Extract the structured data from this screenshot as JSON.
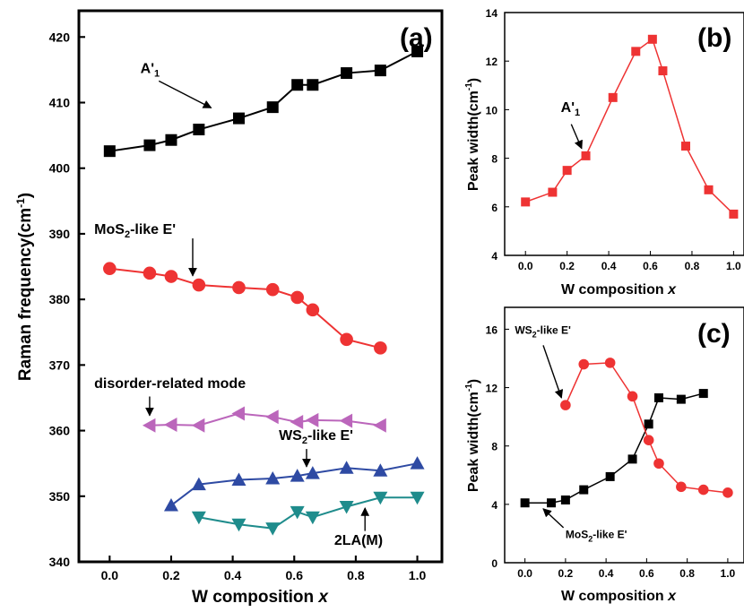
{
  "chart_data": [
    {
      "id": "a",
      "panel_label": "(a)",
      "type": "line",
      "xlabel": "W composition",
      "xlabel_var": "x",
      "ylabel": "Raman frequency(cm",
      "ylabel_sup": "-1",
      "ylabel_end": ")",
      "xlim": [
        -0.1,
        1.08
      ],
      "ylim": [
        340,
        424
      ],
      "xticks": [
        0.0,
        0.2,
        0.4,
        0.6,
        0.8,
        1.0
      ],
      "xtick_labels": [
        "0.0",
        "0.2",
        "0.4",
        "0.6",
        "0.8",
        "1.0"
      ],
      "yticks": [
        340,
        350,
        360,
        370,
        380,
        390,
        400,
        410,
        420
      ],
      "ytick_labels": [
        "340",
        "350",
        "360",
        "370",
        "380",
        "390",
        "400",
        "410",
        "420"
      ],
      "series": [
        {
          "marker": "square",
          "color": "#000000",
          "x": [
            0.0,
            0.13,
            0.2,
            0.29,
            0.42,
            0.53,
            0.61,
            0.66,
            0.77,
            0.88,
            1.0
          ],
          "y": [
            402.6,
            403.5,
            404.3,
            405.9,
            407.6,
            409.3,
            412.7,
            412.7,
            414.5,
            414.9,
            417.8
          ]
        },
        {
          "marker": "circle",
          "color": "#ee3333",
          "x": [
            0.0,
            0.13,
            0.2,
            0.29,
            0.42,
            0.53,
            0.61,
            0.66,
            0.77,
            0.88
          ],
          "y": [
            384.7,
            384.0,
            383.5,
            382.2,
            381.8,
            381.5,
            380.3,
            378.4,
            373.9,
            372.6
          ]
        },
        {
          "marker": "triangle-left",
          "color": "#bb66bb",
          "x": [
            0.13,
            0.2,
            0.29,
            0.42,
            0.53,
            0.61,
            0.66,
            0.77,
            0.88
          ],
          "y": [
            360.8,
            360.9,
            360.8,
            362.6,
            362.1,
            361.3,
            361.6,
            361.5,
            360.8
          ]
        },
        {
          "marker": "triangle-up",
          "color": "#2e4aa3",
          "x": [
            0.2,
            0.29,
            0.42,
            0.53,
            0.61,
            0.66,
            0.77,
            0.88,
            1.0
          ],
          "y": [
            348.6,
            351.8,
            352.5,
            352.7,
            353.1,
            353.5,
            354.3,
            353.9,
            355.0
          ]
        },
        {
          "marker": "triangle-down",
          "color": "#1f8c8c",
          "x": [
            0.29,
            0.42,
            0.53,
            0.61,
            0.66,
            0.77,
            0.88,
            1.0
          ],
          "y": [
            346.8,
            345.7,
            345.1,
            347.6,
            346.8,
            348.4,
            349.8,
            349.8
          ]
        }
      ],
      "annotations": [
        {
          "text": "A'",
          "sub": "1",
          "x": 0.1,
          "y": 414.5,
          "arrow_to": [
            0.33,
            409.2
          ],
          "arrow_from": [
            0.16,
            413.3
          ]
        },
        {
          "text": "MoS",
          "sub": "2",
          "text_end": "-like E'",
          "x": -0.05,
          "y": 390,
          "arrow_to": [
            0.27,
            383.6
          ],
          "arrow_from": [
            0.27,
            389.3
          ]
        },
        {
          "text": "disorder-related mode",
          "x": -0.05,
          "y": 366.5,
          "arrow_to": [
            0.13,
            362.3
          ],
          "arrow_from": [
            0.13,
            365.2
          ]
        },
        {
          "text": "WS",
          "sub": "2",
          "text_end": "-like E'",
          "x": 0.55,
          "y": 358.6,
          "arrow_to": [
            0.64,
            354.5
          ],
          "arrow_from": [
            0.64,
            357.2
          ]
        },
        {
          "text": "2LA(M)",
          "x": 0.73,
          "y": 342.6,
          "arrow_to": [
            0.83,
            348.2
          ],
          "arrow_from": [
            0.83,
            344.7
          ]
        }
      ]
    },
    {
      "id": "b",
      "panel_label": "(b)",
      "type": "line",
      "xlabel": "W composition",
      "xlabel_var": "x",
      "ylabel": "Peak width(cm",
      "ylabel_sup": "-1",
      "ylabel_end": ")",
      "xlim": [
        -0.1,
        1.05
      ],
      "ylim": [
        4,
        14
      ],
      "xticks": [
        0.0,
        0.2,
        0.4,
        0.6,
        0.8,
        1.0
      ],
      "xtick_labels": [
        "0.0",
        "0.2",
        "0.4",
        "0.6",
        "0.8",
        "1.0"
      ],
      "yticks": [
        4,
        6,
        8,
        10,
        12,
        14
      ],
      "ytick_labels": [
        "4",
        "6",
        "8",
        "10",
        "12",
        "14"
      ],
      "series": [
        {
          "marker": "square",
          "color": "#ee3333",
          "x": [
            0.0,
            0.13,
            0.2,
            0.29,
            0.42,
            0.53,
            0.61,
            0.66,
            0.77,
            0.88,
            1.0
          ],
          "y": [
            6.2,
            6.6,
            7.5,
            8.1,
            10.5,
            12.4,
            12.9,
            11.6,
            8.5,
            6.7,
            5.7
          ]
        }
      ],
      "annotations": [
        {
          "text": "A'",
          "sub": "1",
          "x": 0.17,
          "y": 9.9,
          "arrow_to": [
            0.27,
            8.4
          ],
          "arrow_from": [
            0.22,
            9.4
          ]
        }
      ]
    },
    {
      "id": "c",
      "panel_label": "(c)",
      "type": "line",
      "xlabel": "W composition",
      "xlabel_var": "x",
      "ylabel": "Peak width(cm",
      "ylabel_sup": "-1",
      "ylabel_end": ")",
      "xlim": [
        -0.1,
        1.08
      ],
      "ylim": [
        0,
        17.5
      ],
      "xticks": [
        0.0,
        0.2,
        0.4,
        0.6,
        0.8,
        1.0
      ],
      "xtick_labels": [
        "0.0",
        "0.2",
        "0.4",
        "0.6",
        "0.8",
        "1.0"
      ],
      "yticks": [
        0,
        4,
        8,
        12,
        16
      ],
      "ytick_labels": [
        "0",
        "4",
        "8",
        "12",
        "16"
      ],
      "series": [
        {
          "marker": "square",
          "color": "#000000",
          "x": [
            0.0,
            0.13,
            0.2,
            0.29,
            0.42,
            0.53,
            0.61,
            0.66,
            0.77,
            0.88
          ],
          "y": [
            4.1,
            4.1,
            4.3,
            5.0,
            5.9,
            7.1,
            9.5,
            11.3,
            11.2,
            11.6
          ]
        },
        {
          "marker": "circle",
          "color": "#ee3333",
          "x": [
            0.2,
            0.29,
            0.42,
            0.53,
            0.61,
            0.66,
            0.77,
            0.88,
            1.0
          ],
          "y": [
            10.8,
            13.6,
            13.7,
            11.4,
            8.4,
            6.8,
            5.2,
            5.0,
            4.8
          ]
        }
      ],
      "annotations": [
        {
          "text": "WS",
          "sub": "2",
          "text_end": "-like E'",
          "x": -0.05,
          "y": 15.7,
          "arrow_to": [
            0.18,
            11.3
          ],
          "arrow_from": [
            0.09,
            14.9
          ]
        },
        {
          "text": "MoS",
          "sub": "2",
          "text_end": "-like E'",
          "x": 0.2,
          "y": 1.7,
          "arrow_to": [
            0.09,
            3.7
          ],
          "arrow_from": [
            0.19,
            2.4
          ]
        }
      ]
    }
  ]
}
